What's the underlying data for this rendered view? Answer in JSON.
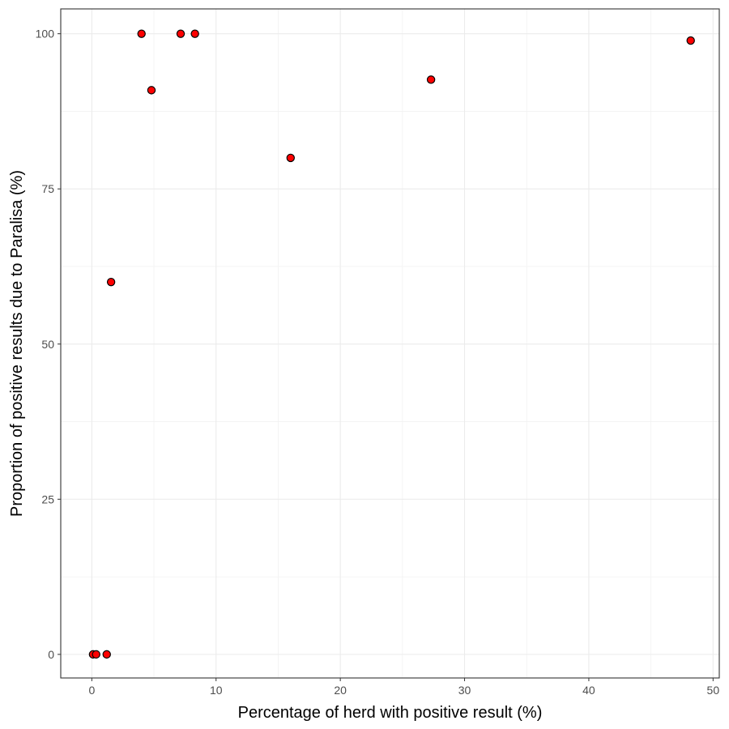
{
  "chart_data": {
    "type": "scatter",
    "title": "",
    "xlabel": "Percentage of herd with positive result (%)",
    "ylabel": "Proportion of positive results due to Paralisa (%)",
    "xlim": [
      -2.5,
      50.5
    ],
    "ylim": [
      -3.8,
      104
    ],
    "x_ticks": [
      0,
      10,
      20,
      30,
      40,
      50
    ],
    "y_ticks": [
      0,
      25,
      50,
      75,
      100
    ],
    "x_tick_labels": [
      "0",
      "10",
      "20",
      "30",
      "40",
      "50"
    ],
    "y_tick_labels": [
      "0",
      "25",
      "50",
      "75",
      "100"
    ],
    "grid": true,
    "legend": false,
    "marker_fill": "#ff0000",
    "marker_edge": "#000000",
    "points": [
      {
        "x": 0.1,
        "y": 0
      },
      {
        "x": 0.35,
        "y": 0
      },
      {
        "x": 1.2,
        "y": 0
      },
      {
        "x": 1.55,
        "y": 60
      },
      {
        "x": 4.0,
        "y": 100
      },
      {
        "x": 4.8,
        "y": 90.9
      },
      {
        "x": 7.15,
        "y": 100
      },
      {
        "x": 8.3,
        "y": 100
      },
      {
        "x": 16.0,
        "y": 80
      },
      {
        "x": 27.3,
        "y": 92.6
      },
      {
        "x": 48.2,
        "y": 98.9
      }
    ]
  }
}
